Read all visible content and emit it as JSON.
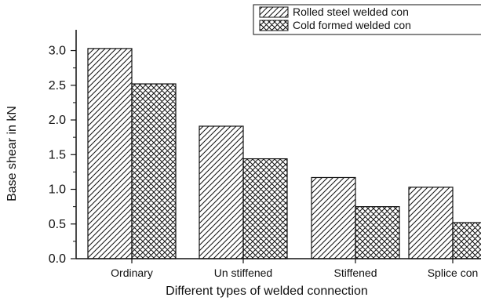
{
  "chart_data": {
    "type": "bar",
    "title": "",
    "xlabel": "Different types of welded connection",
    "ylabel": "Base shear in kN",
    "categories": [
      "Ordinary",
      "Un stiffened",
      "Stiffened",
      "Splice con"
    ],
    "series": [
      {
        "name": "Rolled steel welded con",
        "pattern": "diagonal-hatch",
        "values": [
          3.03,
          1.91,
          1.17,
          1.03
        ]
      },
      {
        "name": "Cold formed welded con",
        "pattern": "cross-hatch",
        "values": [
          2.52,
          1.44,
          0.75,
          0.52
        ]
      }
    ],
    "ylim": [
      0.0,
      3.3
    ],
    "yticks": [
      "0.0",
      "0.5",
      "1.0",
      "1.5",
      "2.0",
      "2.5",
      "3.0"
    ],
    "grid": false,
    "legend": "top-right",
    "colors": {
      "ink": "#111111",
      "background": "#ffffff"
    }
  }
}
